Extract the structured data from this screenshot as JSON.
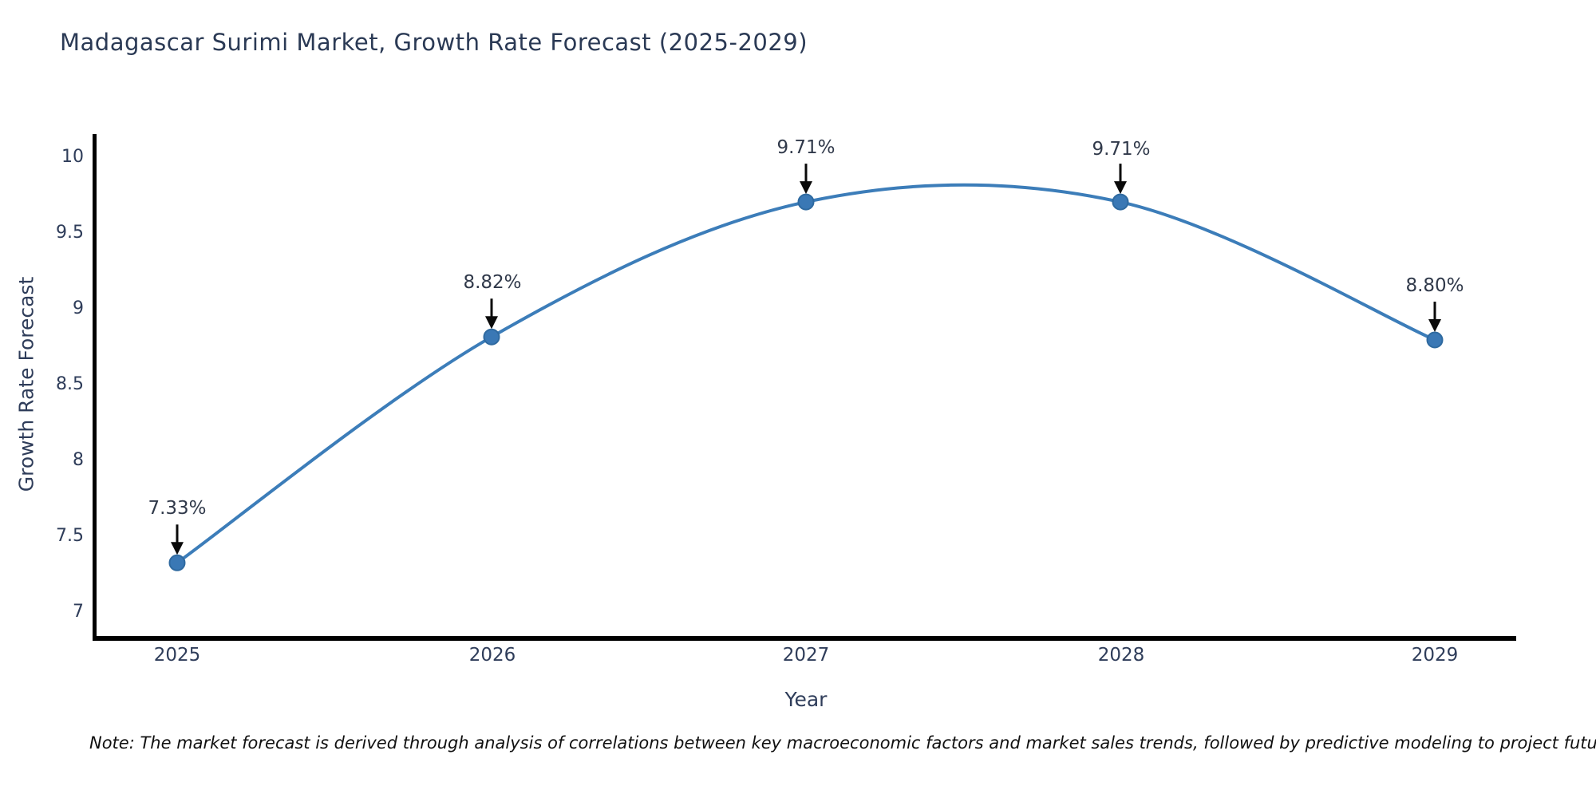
{
  "title": "Madagascar Surimi Market, Growth Rate Forecast (2025-2029)",
  "note": "Note: The market forecast is derived through analysis of correlations between key macroeconomic factors and market sales trends, followed by predictive modeling to project future sales",
  "chart_data": {
    "type": "line",
    "title": "Madagascar Surimi Market, Growth Rate Forecast (2025-2029)",
    "xlabel": "Year",
    "ylabel": "Growth Rate Forecast",
    "categories": [
      "2025",
      "2026",
      "2027",
      "2028",
      "2029"
    ],
    "values": [
      7.33,
      8.82,
      9.71,
      9.71,
      8.8
    ],
    "point_labels": [
      "7.33%",
      "8.82%",
      "9.71%",
      "9.71%",
      "8.80%"
    ],
    "ytick_labels": [
      "10",
      "9.5",
      "9",
      "8.5",
      "8",
      "7.5",
      "7"
    ],
    "ytick_values": [
      10,
      9.5,
      9,
      8.5,
      8,
      7.5,
      7
    ],
    "ylim": [
      6.82,
      10.16
    ],
    "grid": false,
    "legend": "none",
    "marker": "circle",
    "annotation_style": "black-down-arrow-above-point",
    "colors": {
      "line": "#3c7db9",
      "marker_fill": "#3a78b5",
      "marker_edge": "#2f6aa0",
      "axis": "#000000",
      "title_text": "#2b3a55",
      "tick_text": "#2f3d5a",
      "annotation_text": "#30394a",
      "arrow": "#0a0a0a",
      "note_text": "#111111",
      "background": "#ffffff"
    }
  }
}
